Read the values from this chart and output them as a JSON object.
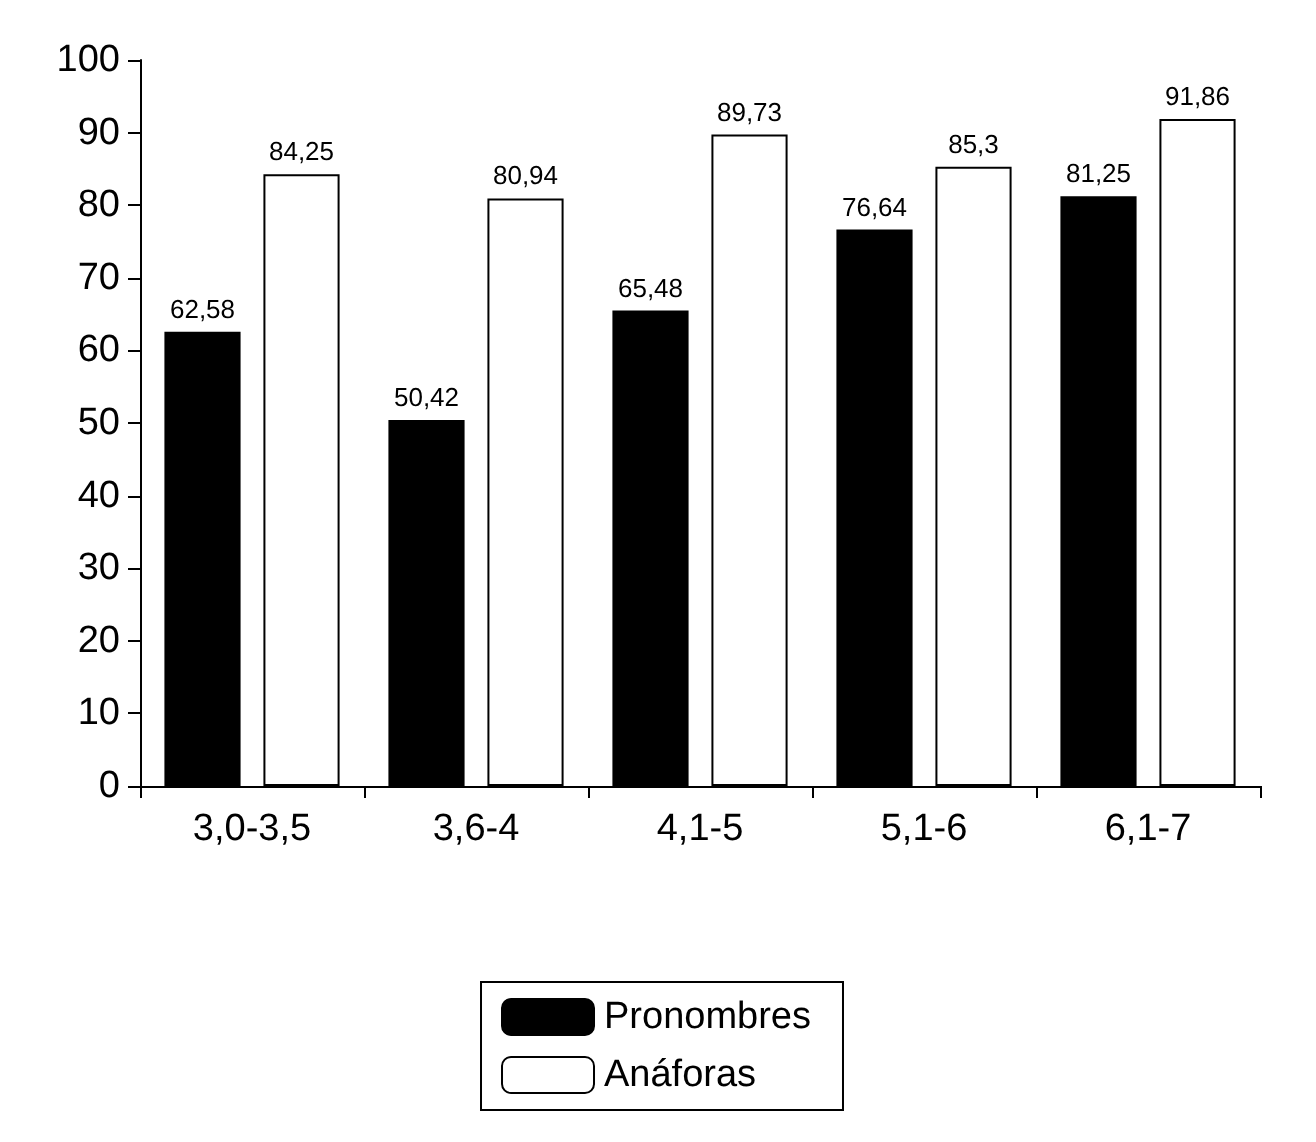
{
  "chart_data": {
    "type": "bar",
    "categories": [
      "3,0-3,5",
      "3,6-4",
      "4,1-5",
      "5,1-6",
      "6,1-7"
    ],
    "series": [
      {
        "name": "Pronombres",
        "color": "#000000",
        "values": [
          62.58,
          50.42,
          65.48,
          76.64,
          81.25
        ],
        "value_labels": [
          "62,58",
          "50,42",
          "65,48",
          "76,64",
          "81,25"
        ]
      },
      {
        "name": "Anáforas",
        "color": "#ffffff",
        "values": [
          84.25,
          80.94,
          89.73,
          85.3,
          91.86
        ],
        "value_labels": [
          "84,25",
          "80,94",
          "89,73",
          "85,3",
          "91,86"
        ]
      }
    ],
    "ylim": [
      0,
      100
    ],
    "yticks": [
      0,
      10,
      20,
      30,
      40,
      50,
      60,
      70,
      80,
      90,
      100
    ],
    "grid": false,
    "legend": "bottom"
  }
}
